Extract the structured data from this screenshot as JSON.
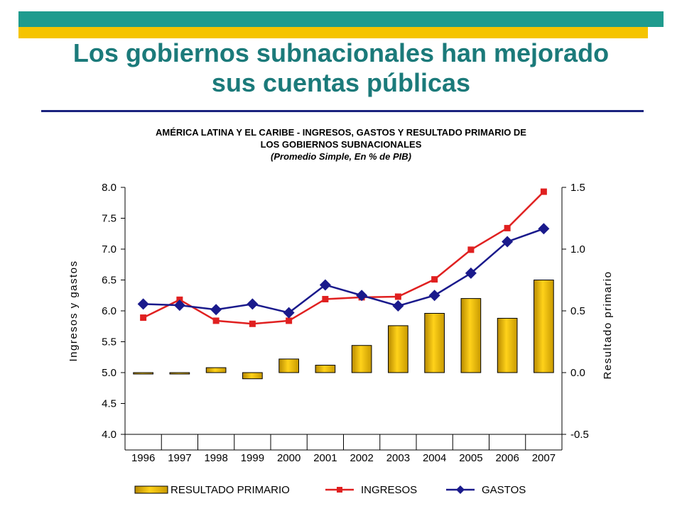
{
  "slide": {
    "title_line1": "Los gobiernos subnacionales han mejorado",
    "title_line2": "sus cuentas públicas",
    "colors": {
      "teal": "#1f9b8e",
      "yellow": "#f5c400",
      "title": "#1b7a7a",
      "rule": "#1a237e"
    }
  },
  "chart_data": {
    "type": "bar+line",
    "title_line1": "AMÉRICA LATINA Y EL CARIBE - INGRESOS, GASTOS Y RESULTADO PRIMARIO DE",
    "title_line2": "LOS GOBIERNOS SUBNACIONALES",
    "subtitle": "(Promedio Simple, En %  de PIB)",
    "categories": [
      "1996",
      "1997",
      "1998",
      "1999",
      "2000",
      "2001",
      "2002",
      "2003",
      "2004",
      "2005",
      "2006",
      "2007"
    ],
    "ylabel_left": "Ingresos y gastos",
    "ylabel_right": "Resultado primario",
    "ylim_left": [
      4.0,
      8.0
    ],
    "yticks_left": [
      "8.0",
      "7.5",
      "7.0",
      "6.5",
      "6.0",
      "5.5",
      "5.0",
      "4.5",
      "4.0"
    ],
    "ylim_right": [
      -0.5,
      1.5
    ],
    "yticks_right": [
      "1.5",
      "1.0",
      "0.5",
      "0.0",
      "-0.5"
    ],
    "series": [
      {
        "name": "RESULTADO PRIMARIO",
        "type": "bar",
        "axis": "right",
        "color": "#e0b000",
        "values": [
          0.0,
          -0.01,
          0.04,
          -0.05,
          0.11,
          0.06,
          0.22,
          0.38,
          0.48,
          0.6,
          0.44,
          0.75
        ]
      },
      {
        "name": "INGRESOS",
        "type": "line",
        "axis": "left",
        "color": "#e02020",
        "marker": "square",
        "values": [
          5.89,
          6.18,
          5.84,
          5.79,
          5.84,
          6.19,
          6.22,
          6.23,
          6.51,
          6.99,
          7.34,
          7.93
        ]
      },
      {
        "name": "GASTOS",
        "type": "line",
        "axis": "left",
        "color": "#1a1a8c",
        "marker": "diamond",
        "values": [
          6.11,
          6.09,
          6.02,
          6.11,
          5.97,
          6.42,
          6.25,
          6.08,
          6.25,
          6.61,
          7.12,
          7.33
        ]
      }
    ],
    "grid": false,
    "legend": "bottom"
  }
}
